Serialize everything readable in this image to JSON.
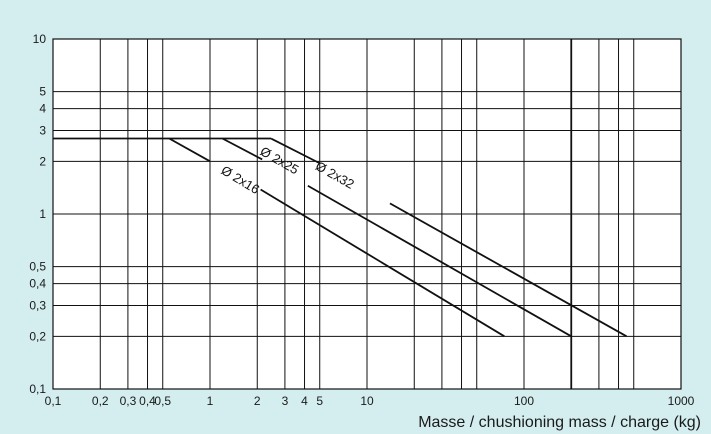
{
  "chart_data": {
    "type": "line",
    "xscale": "log",
    "yscale": "log",
    "xlim": [
      0.1,
      1000
    ],
    "ylim": [
      0.1,
      10
    ],
    "xlabel": "Masse / chushioning mass / charge (kg)",
    "ylabel": "",
    "grid": true,
    "x_ticks": [
      {
        "value": 0.1,
        "label": "0,1"
      },
      {
        "value": 0.2,
        "label": "0,2"
      },
      {
        "value": 0.3,
        "label": "0,3"
      },
      {
        "value": 0.4,
        "label": "0,4"
      },
      {
        "value": 0.5,
        "label": "0,5"
      },
      {
        "value": 1,
        "label": "1"
      },
      {
        "value": 2,
        "label": "2"
      },
      {
        "value": 3,
        "label": "3"
      },
      {
        "value": 4,
        "label": "4"
      },
      {
        "value": 5,
        "label": "5"
      },
      {
        "value": 10,
        "label": "10"
      },
      {
        "value": 100,
        "label": "100"
      },
      {
        "value": 1000,
        "label": "1000"
      }
    ],
    "x_grid": [
      0.2,
      0.3,
      0.4,
      0.5,
      1,
      2,
      3,
      4,
      5,
      10,
      20,
      30,
      40,
      50,
      100,
      200,
      300,
      400,
      500
    ],
    "y_ticks": [
      {
        "value": 0.1,
        "label": "0,1"
      },
      {
        "value": 0.2,
        "label": "0,2"
      },
      {
        "value": 0.3,
        "label": "0,3"
      },
      {
        "value": 0.4,
        "label": "0,4"
      },
      {
        "value": 0.5,
        "label": "0,5"
      },
      {
        "value": 1,
        "label": "1"
      },
      {
        "value": 2,
        "label": "2"
      },
      {
        "value": 3,
        "label": "3"
      },
      {
        "value": 4,
        "label": "4"
      },
      {
        "value": 5,
        "label": "5"
      },
      {
        "value": 10,
        "label": "10"
      }
    ],
    "y_grid": [
      0.2,
      0.3,
      0.4,
      0.5,
      1,
      2,
      3,
      4,
      5
    ],
    "plateau": {
      "x": [
        0.1,
        2.45
      ],
      "y": 2.7
    },
    "series": [
      {
        "name": "Ø 2x16",
        "label_at": {
          "x": 1.55,
          "y": 1.55
        },
        "segments": [
          [
            [
              0.55,
              2.7
            ],
            [
              1.0,
              2.0
            ]
          ],
          [
            [
              2.1,
              1.38
            ],
            [
              75,
              0.2
            ]
          ]
        ]
      },
      {
        "name": "Ø 2x25",
        "label_at": {
          "x": 2.75,
          "y": 2.0
        },
        "segments": [
          [
            [
              1.2,
              2.7
            ],
            [
              2.15,
              2.05
            ]
          ],
          [
            [
              4.2,
              1.45
            ],
            [
              200,
              0.2
            ]
          ]
        ]
      },
      {
        "name": "Ø 2x32",
        "label_at": {
          "x": 6.2,
          "y": 1.65
        },
        "segments": [
          [
            [
              2.45,
              2.7
            ],
            [
              5.0,
              1.95
            ]
          ],
          [
            [
              14,
              1.15
            ],
            [
              450,
              0.2
            ]
          ]
        ]
      }
    ]
  }
}
